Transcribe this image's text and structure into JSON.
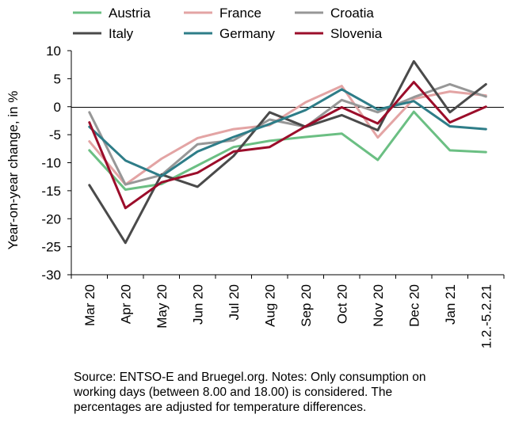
{
  "chart_data": {
    "type": "line",
    "title": "",
    "xlabel": "",
    "ylabel": "Year-on-year change, in %",
    "ylim": [
      -30,
      10
    ],
    "yticks": [
      10,
      5,
      0,
      -5,
      -10,
      -15,
      -20,
      -25,
      -30
    ],
    "grid": false,
    "legend_position": "top",
    "categories": [
      "Mar 20",
      "Apr 20",
      "May 20",
      "Jun 20",
      "Jul 20",
      "Aug 20",
      "Sep 20",
      "Oct 20",
      "Nov 20",
      "Dec 20",
      "Jan 21",
      "1.2.-5.2.21"
    ],
    "series": [
      {
        "name": "Austria",
        "color": "#6bbf83",
        "values": [
          -7.8,
          -14.8,
          -13.8,
          -10.5,
          -7.2,
          -6.1,
          -5.4,
          -4.8,
          -9.5,
          -0.9,
          -7.8,
          -8.1
        ]
      },
      {
        "name": "France",
        "color": "#e3a4a4",
        "values": [
          -6.2,
          -13.9,
          -9.3,
          -5.6,
          -4.0,
          -3.3,
          0.8,
          3.7,
          -5.5,
          1.4,
          2.7,
          2.0
        ]
      },
      {
        "name": "Croatia",
        "color": "#979797",
        "values": [
          -1.0,
          -13.9,
          -12.2,
          -6.7,
          -6.0,
          -2.3,
          -3.6,
          1.2,
          -1.0,
          1.7,
          4.0,
          1.8
        ]
      },
      {
        "name": "Italy",
        "color": "#4a4a4a",
        "values": [
          -14.0,
          -24.3,
          -12.1,
          -14.3,
          -8.8,
          -1.0,
          -3.6,
          -1.5,
          -4.2,
          8.1,
          -1.0,
          4.0
        ]
      },
      {
        "name": "Germany",
        "color": "#2e7d88",
        "values": [
          -3.6,
          -9.6,
          -12.4,
          -8.0,
          -5.4,
          -3.1,
          -0.6,
          3.1,
          -0.5,
          1.0,
          -3.5,
          -4.0
        ]
      },
      {
        "name": "Slovenia",
        "color": "#9b0d2a",
        "values": [
          -2.8,
          -18.1,
          -13.5,
          -11.8,
          -8.0,
          -7.2,
          -3.5,
          -0.1,
          -3.0,
          4.4,
          -2.8,
          0.0
        ]
      }
    ]
  },
  "note": {
    "line1": "Source: ENTSO-E and Bruegel.org. Notes: Only consumption on",
    "line2": "working days (between 8.00 and 18.00) is considered. The",
    "line3": "percentages are adjusted for temperature differences."
  }
}
